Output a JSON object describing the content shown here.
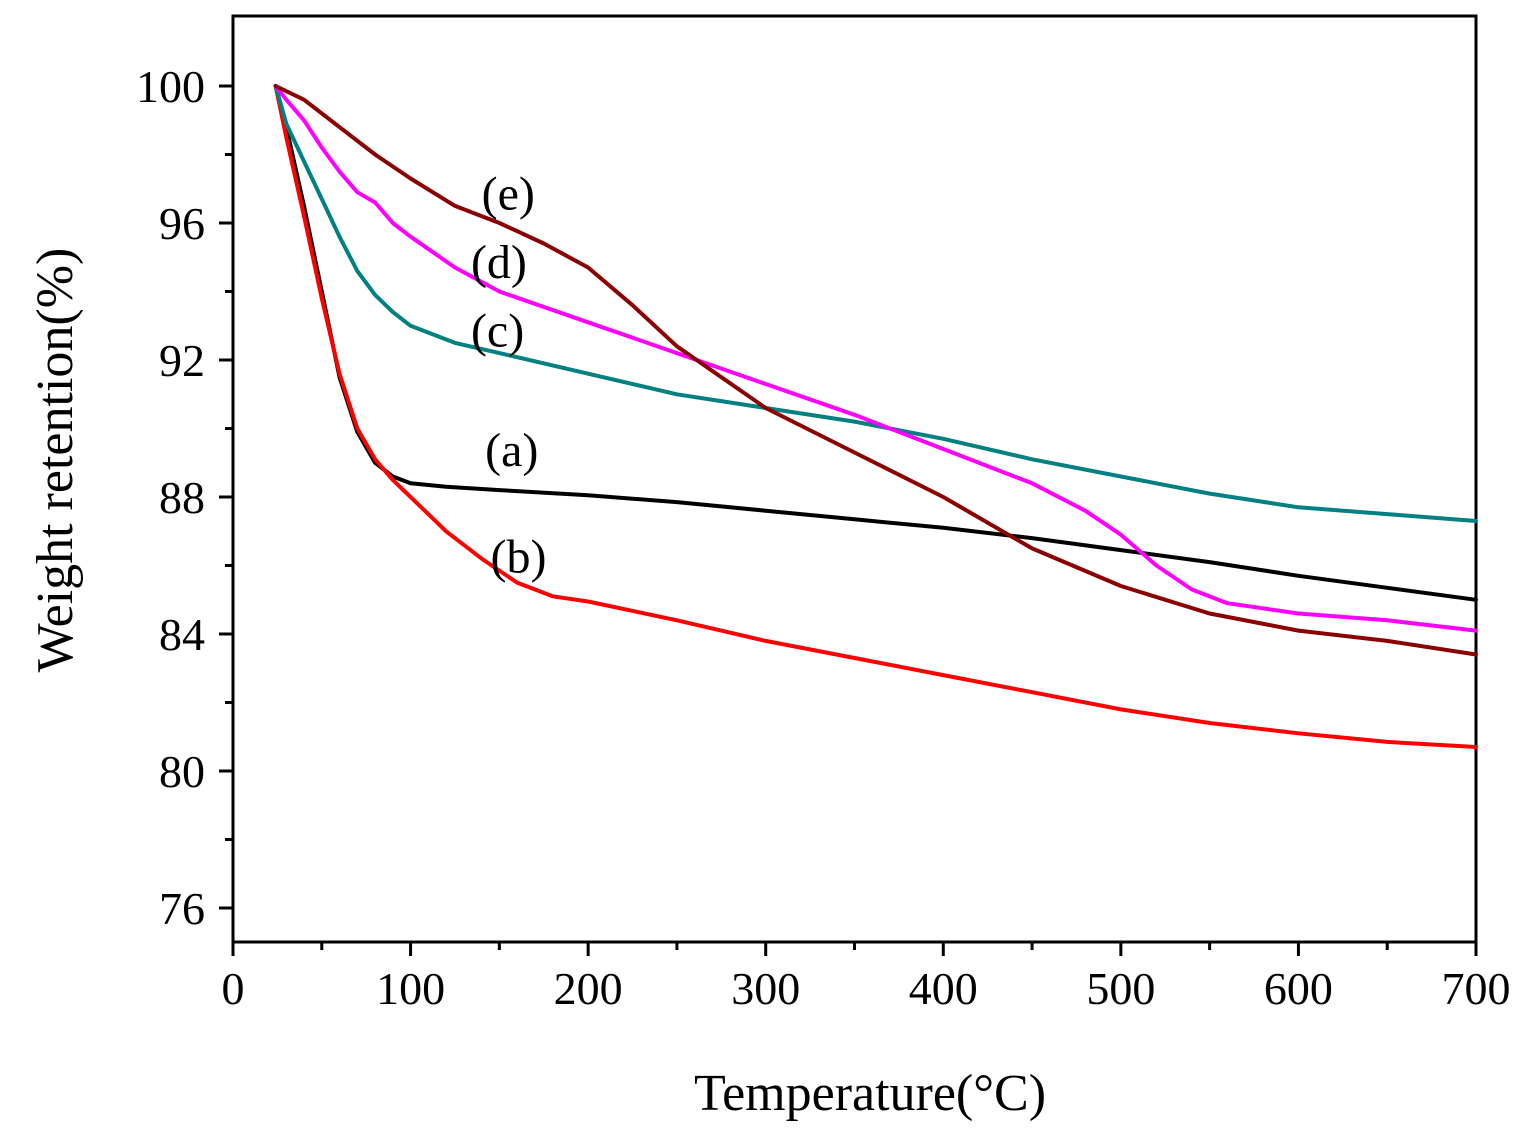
{
  "chart_data": {
    "type": "line",
    "title": "",
    "xlabel": "Temperature(°C)",
    "ylabel": "Weight retention(%)",
    "xlim": [
      0,
      700
    ],
    "ylim": [
      75,
      102
    ],
    "xticks": [
      0,
      100,
      200,
      300,
      400,
      500,
      600,
      700
    ],
    "yticks": [
      76,
      80,
      84,
      88,
      92,
      96,
      100
    ],
    "xtick_labels": [
      "0",
      "100",
      "200",
      "300",
      "400",
      "500",
      "600",
      "700"
    ],
    "ytick_labels": [
      "76",
      "80",
      "84",
      "88",
      "92",
      "96",
      "100"
    ],
    "grid": false,
    "legend": "none",
    "series": [
      {
        "name": "(a)",
        "color": "#000000",
        "x": [
          24,
          30,
          40,
          50,
          60,
          70,
          80,
          90,
          100,
          120,
          150,
          200,
          250,
          300,
          350,
          400,
          450,
          500,
          550,
          600,
          650,
          700
        ],
        "y": [
          100,
          98.8,
          96.5,
          94.0,
          91.5,
          89.9,
          89.0,
          88.6,
          88.4,
          88.3,
          88.2,
          88.05,
          87.85,
          87.6,
          87.35,
          87.1,
          86.8,
          86.45,
          86.1,
          85.7,
          85.35,
          85.0
        ]
      },
      {
        "name": "(b)",
        "color": "#ff0000",
        "x": [
          24,
          30,
          40,
          50,
          60,
          70,
          80,
          90,
          100,
          120,
          140,
          160,
          180,
          200,
          250,
          300,
          350,
          400,
          450,
          500,
          550,
          600,
          650,
          700
        ],
        "y": [
          100,
          98.5,
          96.2,
          93.8,
          91.6,
          90.0,
          89.1,
          88.5,
          88.0,
          87.0,
          86.2,
          85.5,
          85.1,
          84.95,
          84.4,
          83.8,
          83.3,
          82.8,
          82.3,
          81.8,
          81.4,
          81.1,
          80.85,
          80.7
        ]
      },
      {
        "name": "(c)",
        "color": "#008080",
        "x": [
          24,
          30,
          40,
          50,
          60,
          70,
          80,
          90,
          100,
          125,
          150,
          200,
          250,
          300,
          350,
          400,
          450,
          500,
          550,
          600,
          650,
          700
        ],
        "y": [
          100,
          98.9,
          97.8,
          96.7,
          95.6,
          94.6,
          93.9,
          93.4,
          93.0,
          92.5,
          92.2,
          91.6,
          91.0,
          90.6,
          90.2,
          89.7,
          89.1,
          88.6,
          88.1,
          87.7,
          87.5,
          87.3
        ]
      },
      {
        "name": "(d)",
        "color": "#ff00ff",
        "x": [
          24,
          30,
          40,
          50,
          60,
          70,
          80,
          90,
          100,
          125,
          150,
          200,
          250,
          300,
          350,
          400,
          450,
          480,
          500,
          520,
          540,
          560,
          600,
          650,
          700
        ],
        "y": [
          100,
          99.6,
          99.0,
          98.2,
          97.5,
          96.9,
          96.6,
          96.0,
          95.6,
          94.7,
          94.0,
          93.1,
          92.2,
          91.3,
          90.4,
          89.4,
          88.4,
          87.6,
          86.9,
          86.0,
          85.3,
          84.9,
          84.6,
          84.4,
          84.1
        ]
      },
      {
        "name": "(e)",
        "color": "#8b0000",
        "x": [
          24,
          40,
          60,
          80,
          100,
          125,
          150,
          175,
          200,
          225,
          250,
          300,
          350,
          400,
          450,
          500,
          550,
          600,
          650,
          700
        ],
        "y": [
          100,
          99.6,
          98.8,
          98.0,
          97.3,
          96.5,
          96.0,
          95.4,
          94.7,
          93.6,
          92.4,
          90.6,
          89.3,
          88.0,
          86.5,
          85.4,
          84.6,
          84.1,
          83.8,
          83.4
        ]
      }
    ],
    "annotations": [
      {
        "text": "(a)",
        "x": 142,
        "y": 88.9
      },
      {
        "text": "(b)",
        "x": 145,
        "y": 85.8
      },
      {
        "text": "(c)",
        "x": 134,
        "y": 92.4
      },
      {
        "text": "(d)",
        "x": 134,
        "y": 94.4
      },
      {
        "text": "(e)",
        "x": 140,
        "y": 96.4
      }
    ]
  }
}
